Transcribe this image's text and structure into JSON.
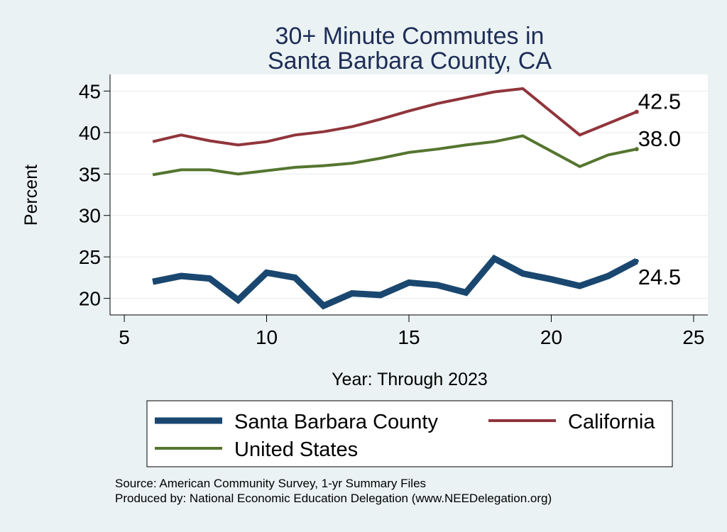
{
  "chart_data": {
    "type": "line",
    "title_lines": [
      "30+ Minute Commutes in",
      "Santa Barbara County, CA"
    ],
    "xlabel": "Year: Through 2023",
    "ylabel": "Percent",
    "xlim": [
      4.5,
      25.5
    ],
    "ylim": [
      18,
      47
    ],
    "xticks": [
      5,
      10,
      15,
      20,
      25
    ],
    "yticks": [
      20,
      25,
      30,
      35,
      40,
      45
    ],
    "grid": true,
    "legend_position": "bottom",
    "series": [
      {
        "name": "Santa Barbara County",
        "color": "#1a476f",
        "points": [
          {
            "x": 6,
            "y": 22.0
          },
          {
            "x": 7,
            "y": 22.7
          },
          {
            "x": 8,
            "y": 22.4
          },
          {
            "x": 9,
            "y": 19.8
          },
          {
            "x": 10,
            "y": 23.1
          },
          {
            "x": 11,
            "y": 22.5
          },
          {
            "x": 12,
            "y": 19.1
          },
          {
            "x": 13,
            "y": 20.6
          },
          {
            "x": 14,
            "y": 20.4
          },
          {
            "x": 15,
            "y": 21.9
          },
          {
            "x": 16,
            "y": 21.6
          },
          {
            "x": 17,
            "y": 20.7
          },
          {
            "x": 18,
            "y": 24.8
          },
          {
            "x": 19,
            "y": 23.0
          },
          {
            "x": 20,
            "y": 22.3
          },
          {
            "x": 21,
            "y": 21.5
          },
          {
            "x": 22,
            "y": 22.7
          },
          {
            "x": 23,
            "y": 24.5
          }
        ],
        "end_label": "24.5"
      },
      {
        "name": "California",
        "color": "#90353b",
        "points": [
          {
            "x": 6,
            "y": 38.9
          },
          {
            "x": 7,
            "y": 39.7
          },
          {
            "x": 8,
            "y": 39.0
          },
          {
            "x": 9,
            "y": 38.5
          },
          {
            "x": 10,
            "y": 38.9
          },
          {
            "x": 11,
            "y": 39.7
          },
          {
            "x": 12,
            "y": 40.1
          },
          {
            "x": 13,
            "y": 40.7
          },
          {
            "x": 14,
            "y": 41.6
          },
          {
            "x": 15,
            "y": 42.6
          },
          {
            "x": 16,
            "y": 43.5
          },
          {
            "x": 17,
            "y": 44.2
          },
          {
            "x": 18,
            "y": 44.9
          },
          {
            "x": 19,
            "y": 45.3
          },
          {
            "x": 21,
            "y": 39.7
          },
          {
            "x": 22,
            "y": 41.1
          },
          {
            "x": 23,
            "y": 42.5
          }
        ],
        "end_label": "42.5"
      },
      {
        "name": "United States",
        "color": "#55752f",
        "points": [
          {
            "x": 6,
            "y": 34.9
          },
          {
            "x": 7,
            "y": 35.5
          },
          {
            "x": 8,
            "y": 35.5
          },
          {
            "x": 9,
            "y": 35.0
          },
          {
            "x": 10,
            "y": 35.4
          },
          {
            "x": 11,
            "y": 35.8
          },
          {
            "x": 12,
            "y": 36.0
          },
          {
            "x": 13,
            "y": 36.3
          },
          {
            "x": 14,
            "y": 36.9
          },
          {
            "x": 15,
            "y": 37.6
          },
          {
            "x": 16,
            "y": 38.0
          },
          {
            "x": 17,
            "y": 38.5
          },
          {
            "x": 18,
            "y": 38.9
          },
          {
            "x": 19,
            "y": 39.6
          },
          {
            "x": 21,
            "y": 35.9
          },
          {
            "x": 22,
            "y": 37.3
          },
          {
            "x": 23,
            "y": 38.0
          }
        ],
        "end_label": "38.0"
      }
    ],
    "legend_entries": [
      "Santa Barbara County",
      "California",
      "United States"
    ],
    "notes": [
      "Source: American Community Survey, 1-yr Summary Files",
      "Produced by: National Economic Education Delegation (www.NEEDelegation.org)"
    ]
  }
}
